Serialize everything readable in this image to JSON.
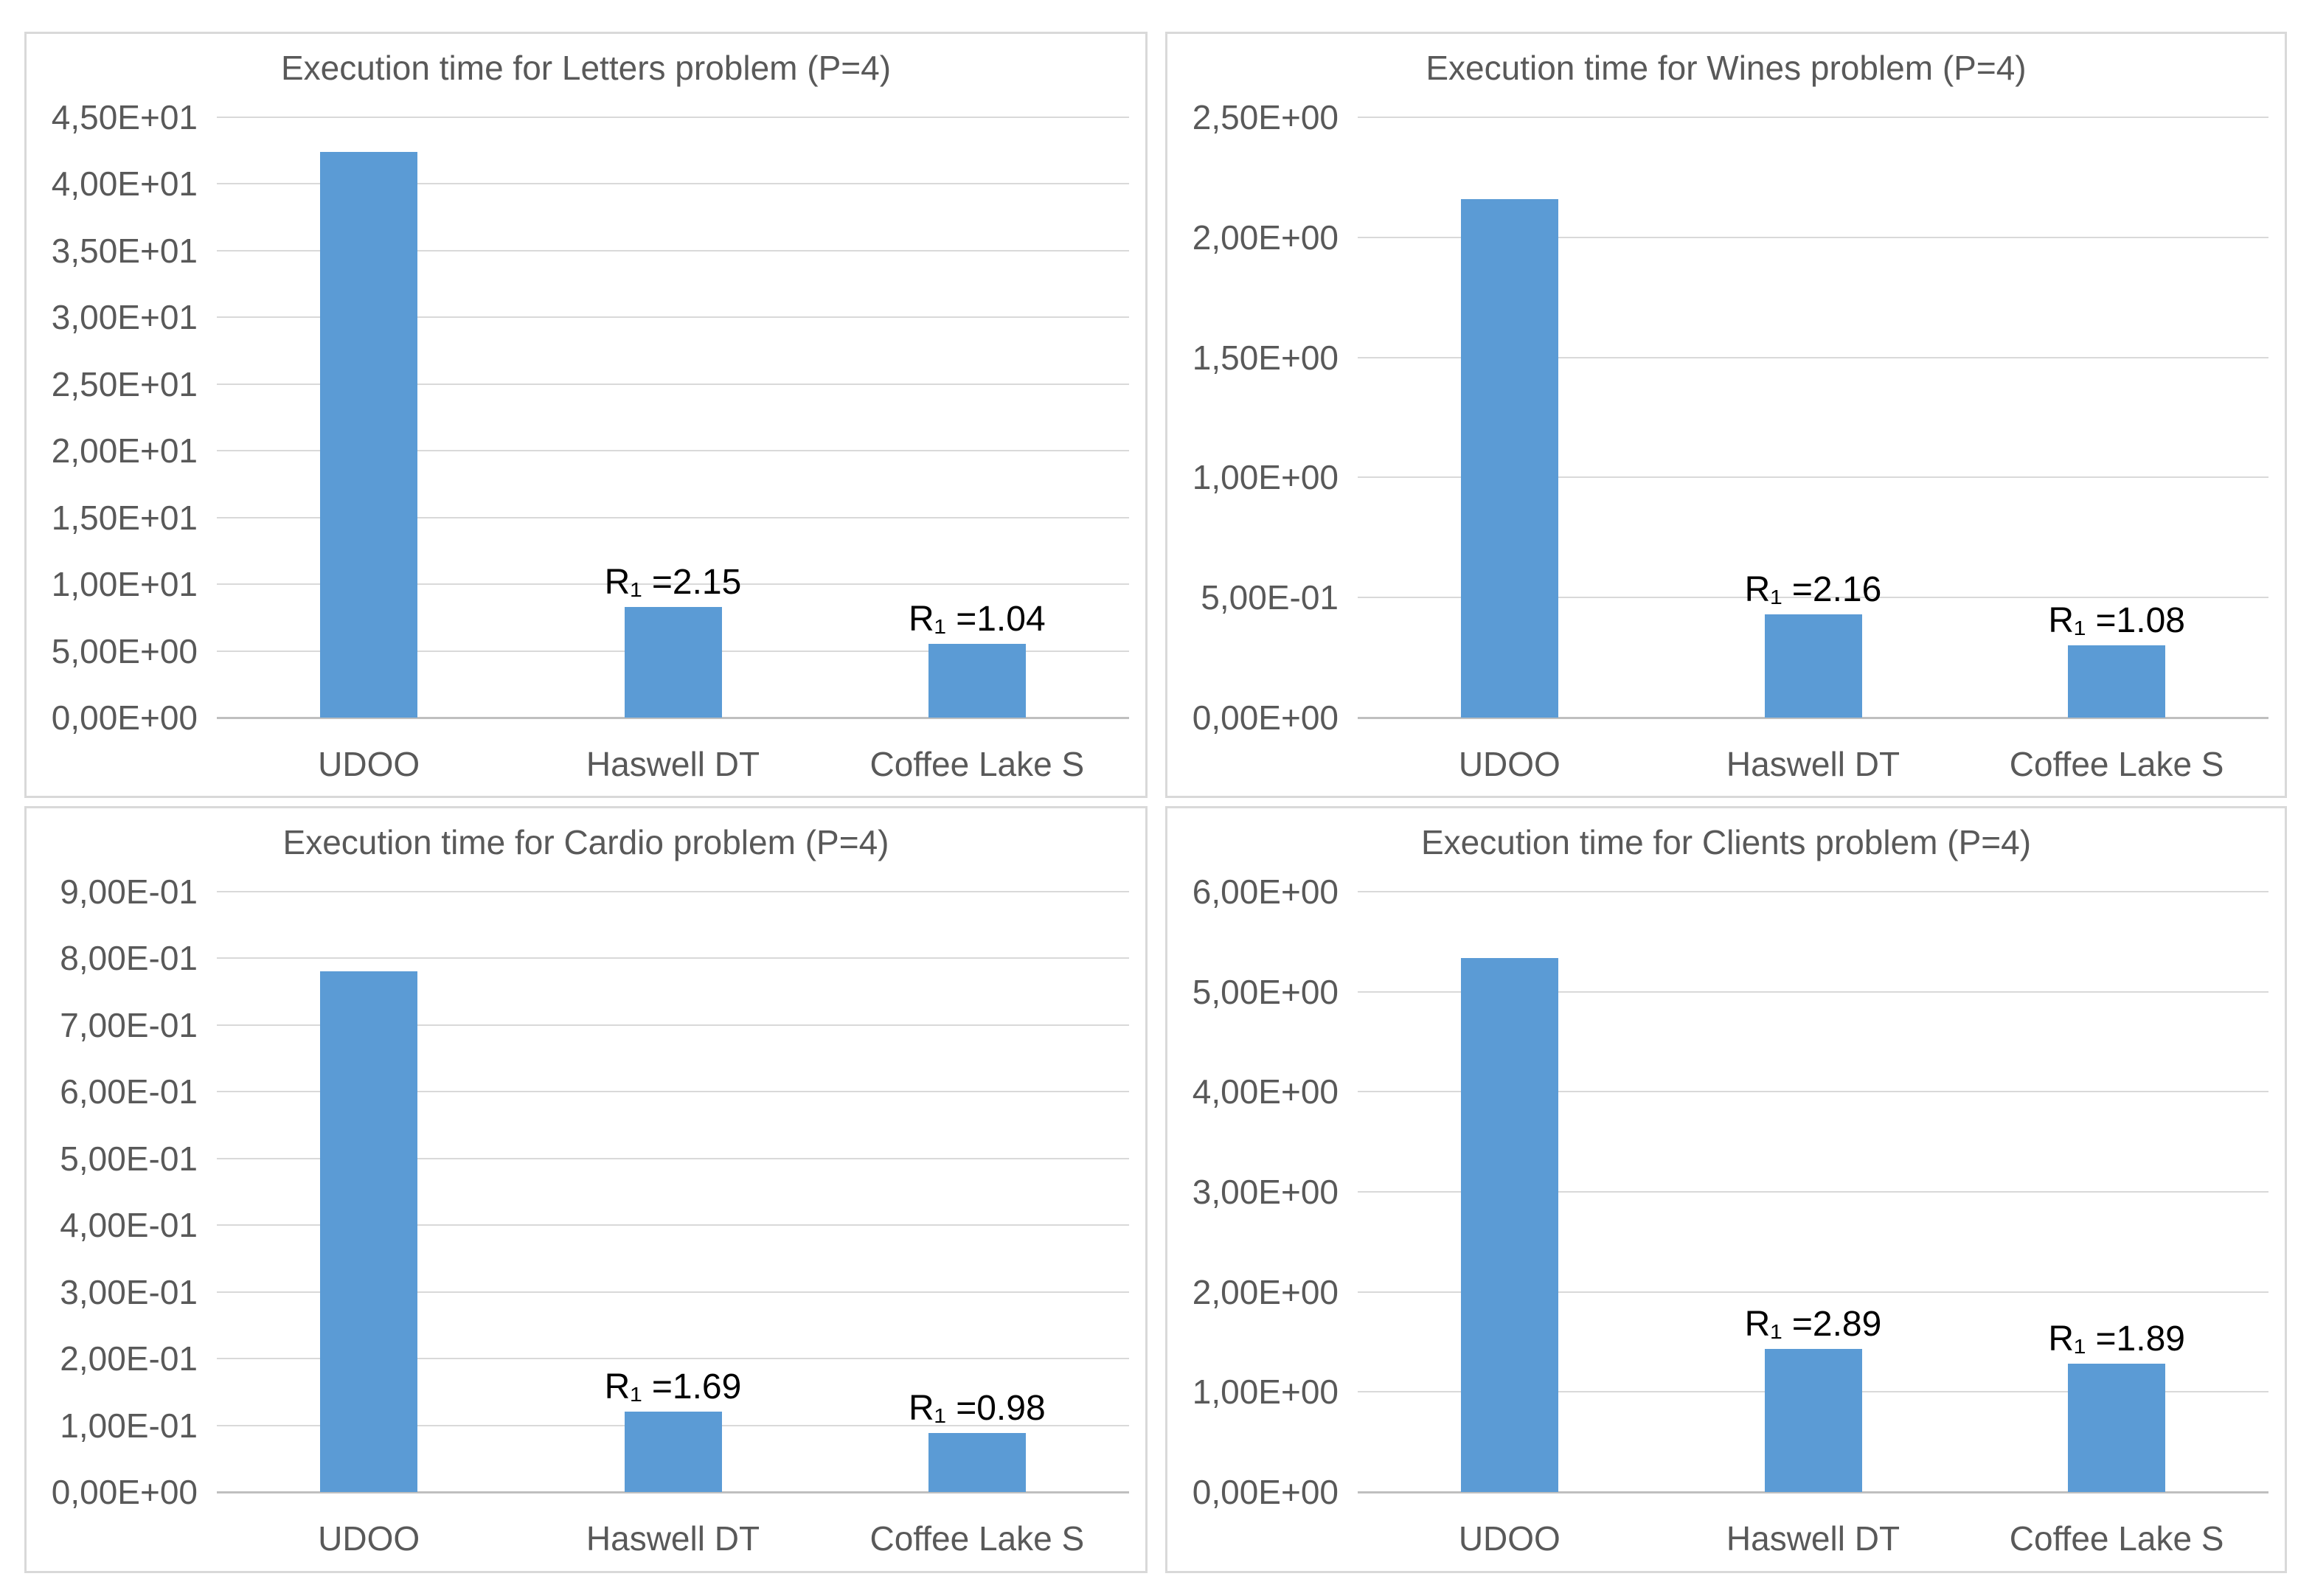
{
  "colors": {
    "bar": "#5b9bd5",
    "gridline": "#d9d9d9",
    "axis_line": "#bfbfbf",
    "axis_text": "#595959",
    "annotation_text": "#000000",
    "panel_border": "#d9d9d9",
    "background": "#ffffff"
  },
  "chart_data": [
    {
      "type": "bar",
      "title": "Execution time for Letters problem (P=4)",
      "categories": [
        "UDOO",
        "Haswell DT",
        "Coffee Lake S"
      ],
      "values": [
        42.4,
        8.3,
        5.55
      ],
      "bar_labels": [
        "",
        "R₁ =2.15",
        "R₁ =1.04"
      ],
      "ylim": [
        0,
        45
      ],
      "ytick_step": 5,
      "yticks": [
        "0,00E+00",
        "5,00E+00",
        "1,00E+01",
        "1,50E+01",
        "2,00E+01",
        "2,50E+01",
        "3,00E+01",
        "3,50E+01",
        "4,00E+01",
        "4,50E+01"
      ],
      "grid": true,
      "legend": "none",
      "xlabel": "",
      "ylabel": ""
    },
    {
      "type": "bar",
      "title": "Execution time for Wines problem (P=4)",
      "categories": [
        "UDOO",
        "Haswell DT",
        "Coffee Lake S"
      ],
      "values": [
        2.16,
        0.43,
        0.3
      ],
      "bar_labels": [
        "",
        "R₁ =2.16",
        "R₁ =1.08"
      ],
      "ylim": [
        0,
        2.5
      ],
      "ytick_step": 0.5,
      "yticks": [
        "0,00E+00",
        "5,00E-01",
        "1,00E+00",
        "1,50E+00",
        "2,00E+00",
        "2,50E+00"
      ],
      "grid": true,
      "legend": "none",
      "xlabel": "",
      "ylabel": ""
    },
    {
      "type": "bar",
      "title": "Execution time for Cardio problem (P=4)",
      "categories": [
        "UDOO",
        "Haswell DT",
        "Coffee Lake S"
      ],
      "values": [
        0.781,
        0.121,
        0.088
      ],
      "bar_labels": [
        "",
        "R₁ =1.69",
        "R₁ =0.98"
      ],
      "ylim": [
        0,
        0.9
      ],
      "ytick_step": 0.1,
      "yticks": [
        "0,00E+00",
        "1,00E-01",
        "2,00E-01",
        "3,00E-01",
        "4,00E-01",
        "5,00E-01",
        "6,00E-01",
        "7,00E-01",
        "8,00E-01",
        "9,00E-01"
      ],
      "grid": true,
      "legend": "none",
      "xlabel": "",
      "ylabel": ""
    },
    {
      "type": "bar",
      "title": "Execution time for Clients problem (P=4)",
      "categories": [
        "UDOO",
        "Haswell DT",
        "Coffee Lake S"
      ],
      "values": [
        5.34,
        1.43,
        1.28
      ],
      "bar_labels": [
        "",
        "R₁ =2.89",
        "R₁ =1.89"
      ],
      "ylim": [
        0,
        6
      ],
      "ytick_step": 1,
      "yticks": [
        "0,00E+00",
        "1,00E+00",
        "2,00E+00",
        "3,00E+00",
        "4,00E+00",
        "5,00E+00",
        "6,00E+00"
      ],
      "grid": true,
      "legend": "none",
      "xlabel": "",
      "ylabel": ""
    }
  ]
}
